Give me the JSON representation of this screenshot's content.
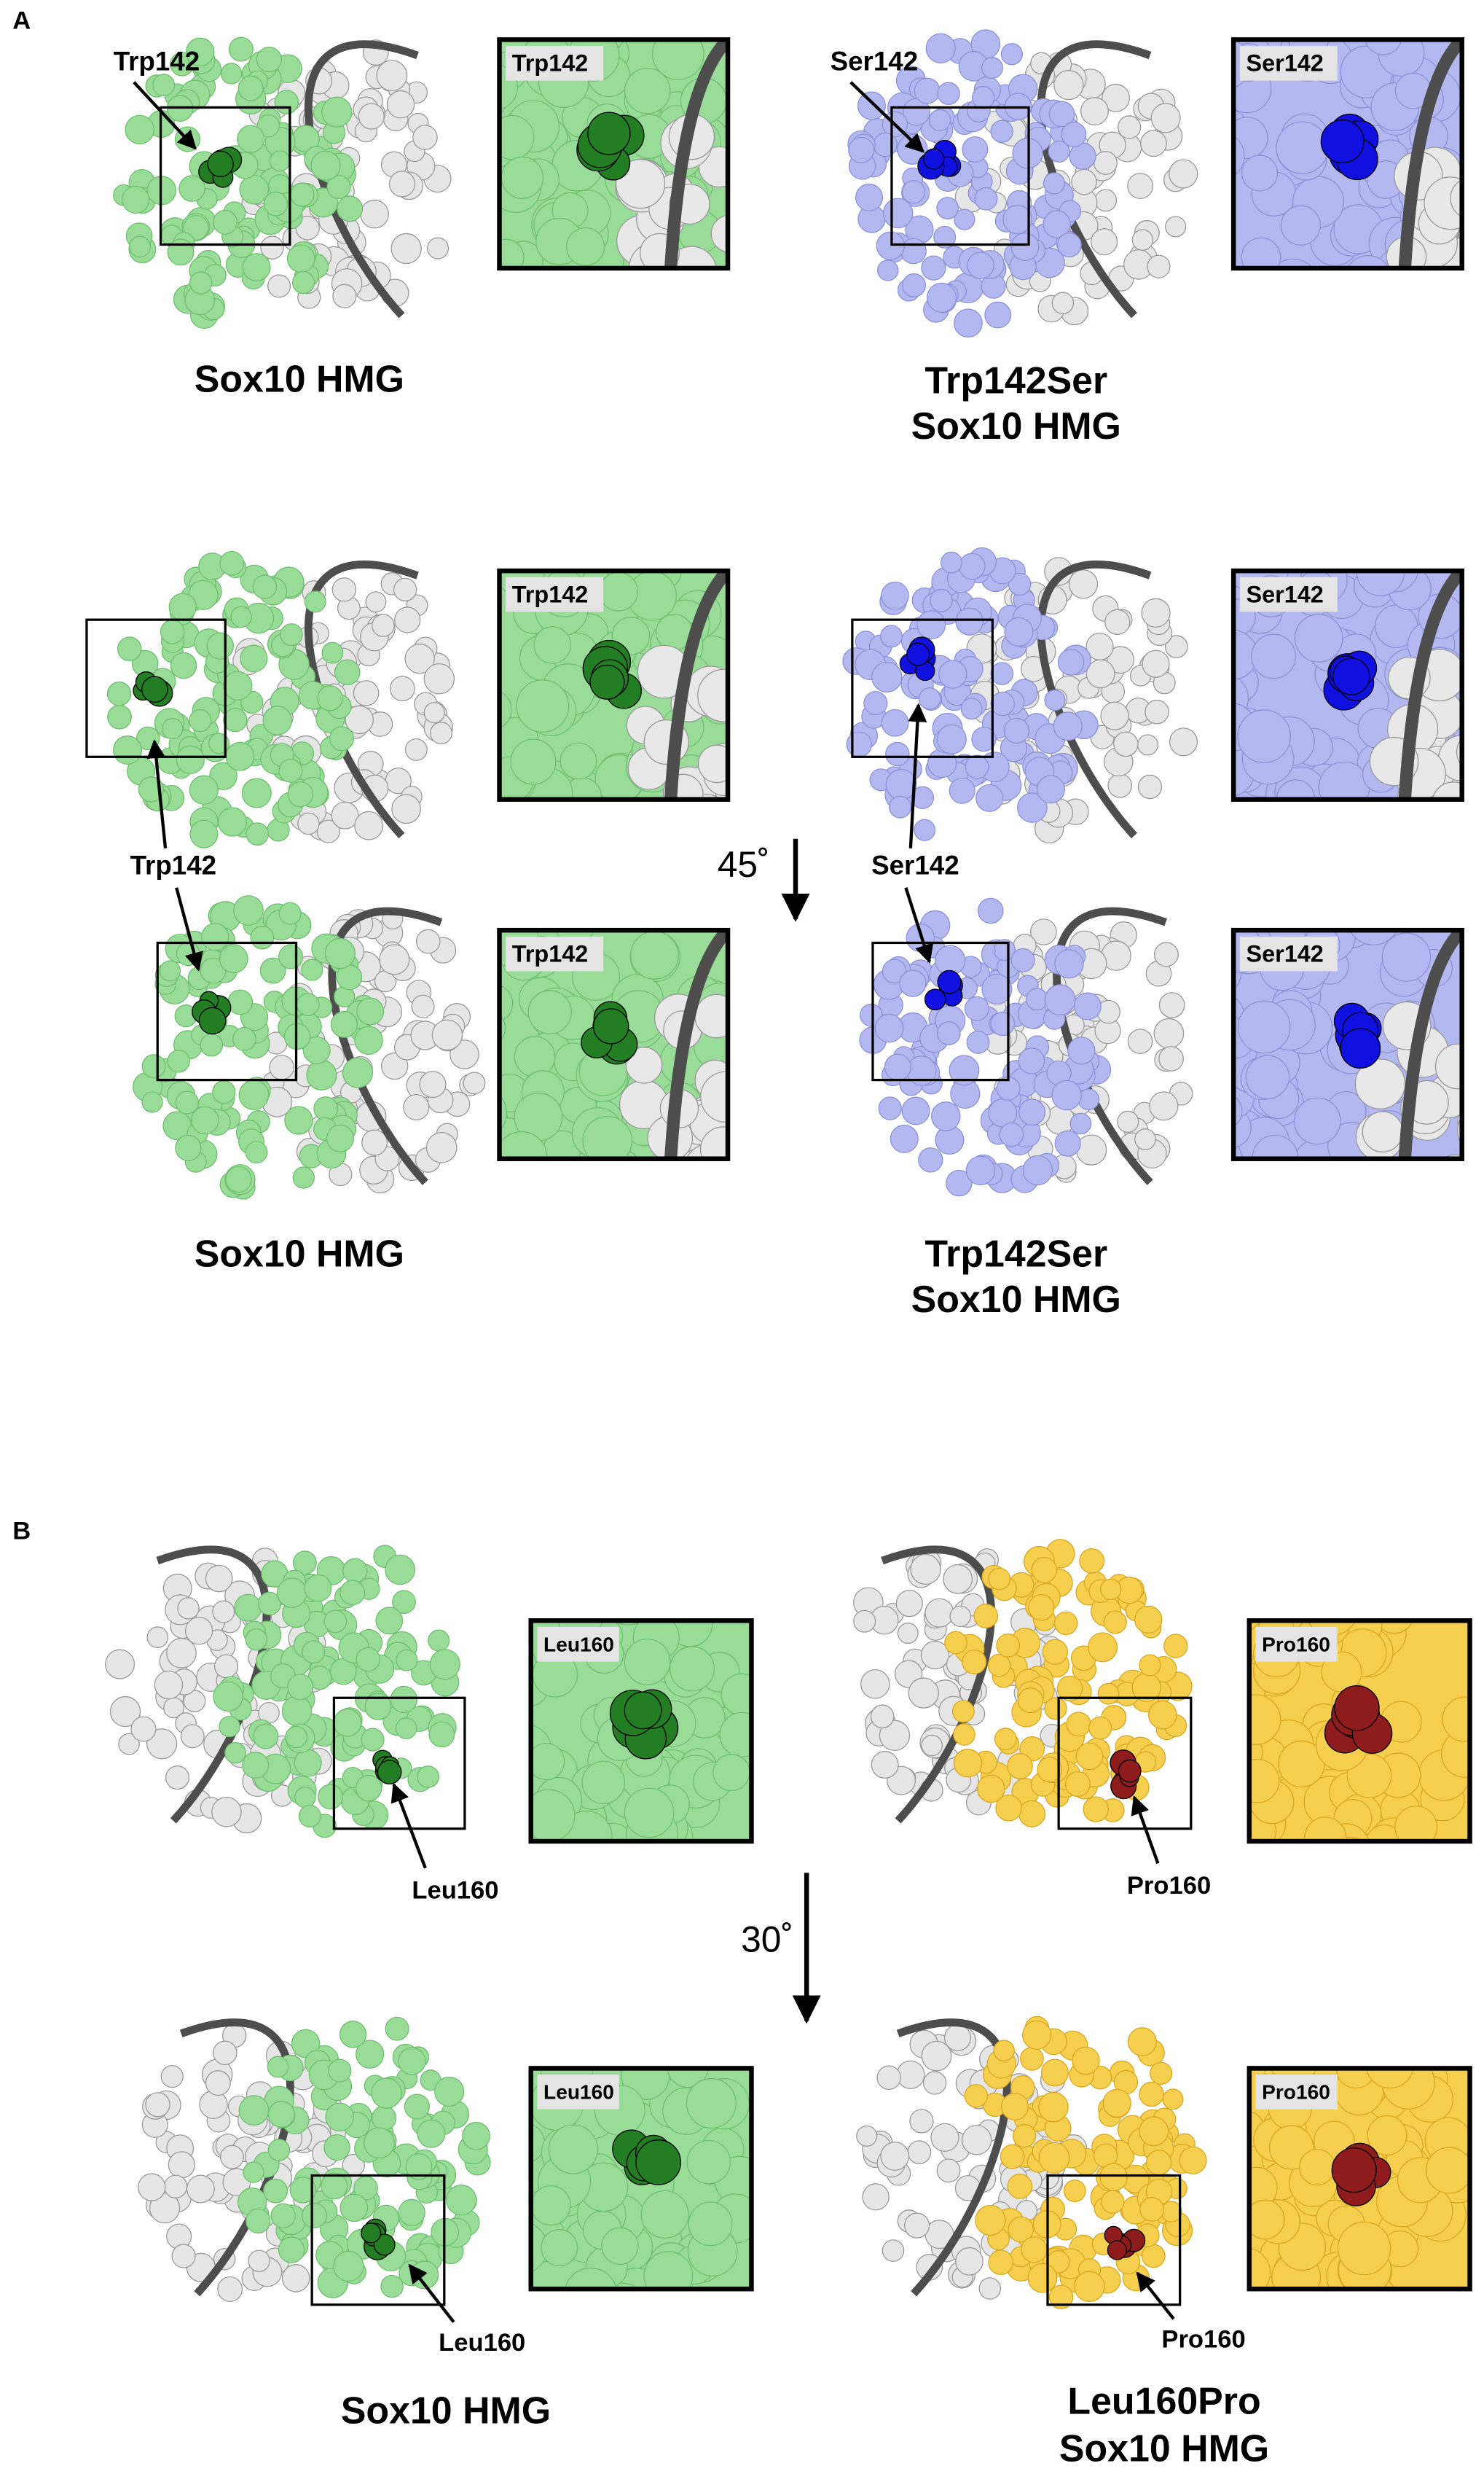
{
  "panels": [
    {
      "label": "A",
      "pointer_labels": [
        "Trp142",
        "Ser142",
        "Trp142",
        "Ser142"
      ],
      "inset_labels": [
        "Trp142",
        "Ser142",
        "Trp142",
        "Ser142",
        "Trp142",
        "Ser142"
      ],
      "captions": [
        [
          "Sox10 HMG"
        ],
        [
          "Trp142Ser",
          "Sox10 HMG"
        ],
        [
          "Sox10 HMG"
        ],
        [
          "Trp142Ser",
          "Sox10 HMG"
        ]
      ],
      "rotation": "45˚"
    },
    {
      "label": "B",
      "pointer_labels": [
        "Leu160",
        "Pro160",
        "Leu160",
        "Pro160"
      ],
      "inset_labels": [
        "Leu160",
        "Pro160",
        "Leu160",
        "Pro160"
      ],
      "captions": [
        [
          "Sox10 HMG"
        ],
        [
          "Leu160Pro",
          "Sox10 HMG"
        ]
      ],
      "rotation": "30˚"
    }
  ]
}
